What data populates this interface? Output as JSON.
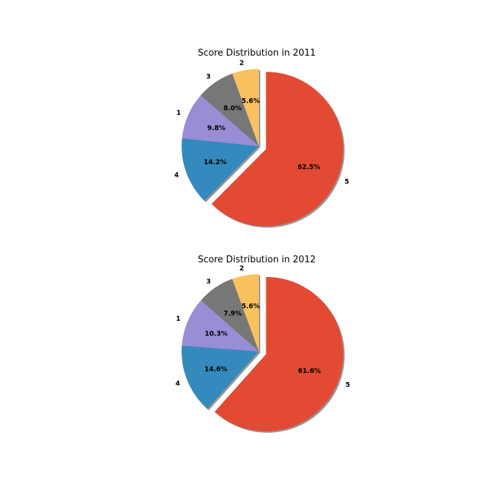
{
  "chart_data": [
    {
      "type": "pie",
      "title": "Score Distribution in 2011",
      "labels": [
        "5",
        "4",
        "1",
        "3",
        "2"
      ],
      "values": [
        62.5,
        14.2,
        9.8,
        8.0,
        5.6
      ],
      "pct_labels": [
        "62.5%",
        "14.2%",
        "9.8%",
        "8.0%",
        "5.6%"
      ],
      "colors": [
        "#E24A33",
        "#348ABD",
        "#988ED5",
        "#777777",
        "#FBC15E"
      ],
      "explode": [
        "5"
      ],
      "shadow": true,
      "start_angle_deg": 90,
      "direction": "clockwise"
    },
    {
      "type": "pie",
      "title": "Score Distribution in 2012",
      "labels": [
        "5",
        "4",
        "1",
        "3",
        "2"
      ],
      "values": [
        61.6,
        14.6,
        10.3,
        7.9,
        5.6
      ],
      "pct_labels": [
        "61.6%",
        "14.6%",
        "10.3%",
        "7.9%",
        "5.6%"
      ],
      "colors": [
        "#E24A33",
        "#348ABD",
        "#988ED5",
        "#777777",
        "#FBC15E"
      ],
      "explode": [
        "5"
      ],
      "shadow": true,
      "start_angle_deg": 90,
      "direction": "clockwise"
    }
  ]
}
